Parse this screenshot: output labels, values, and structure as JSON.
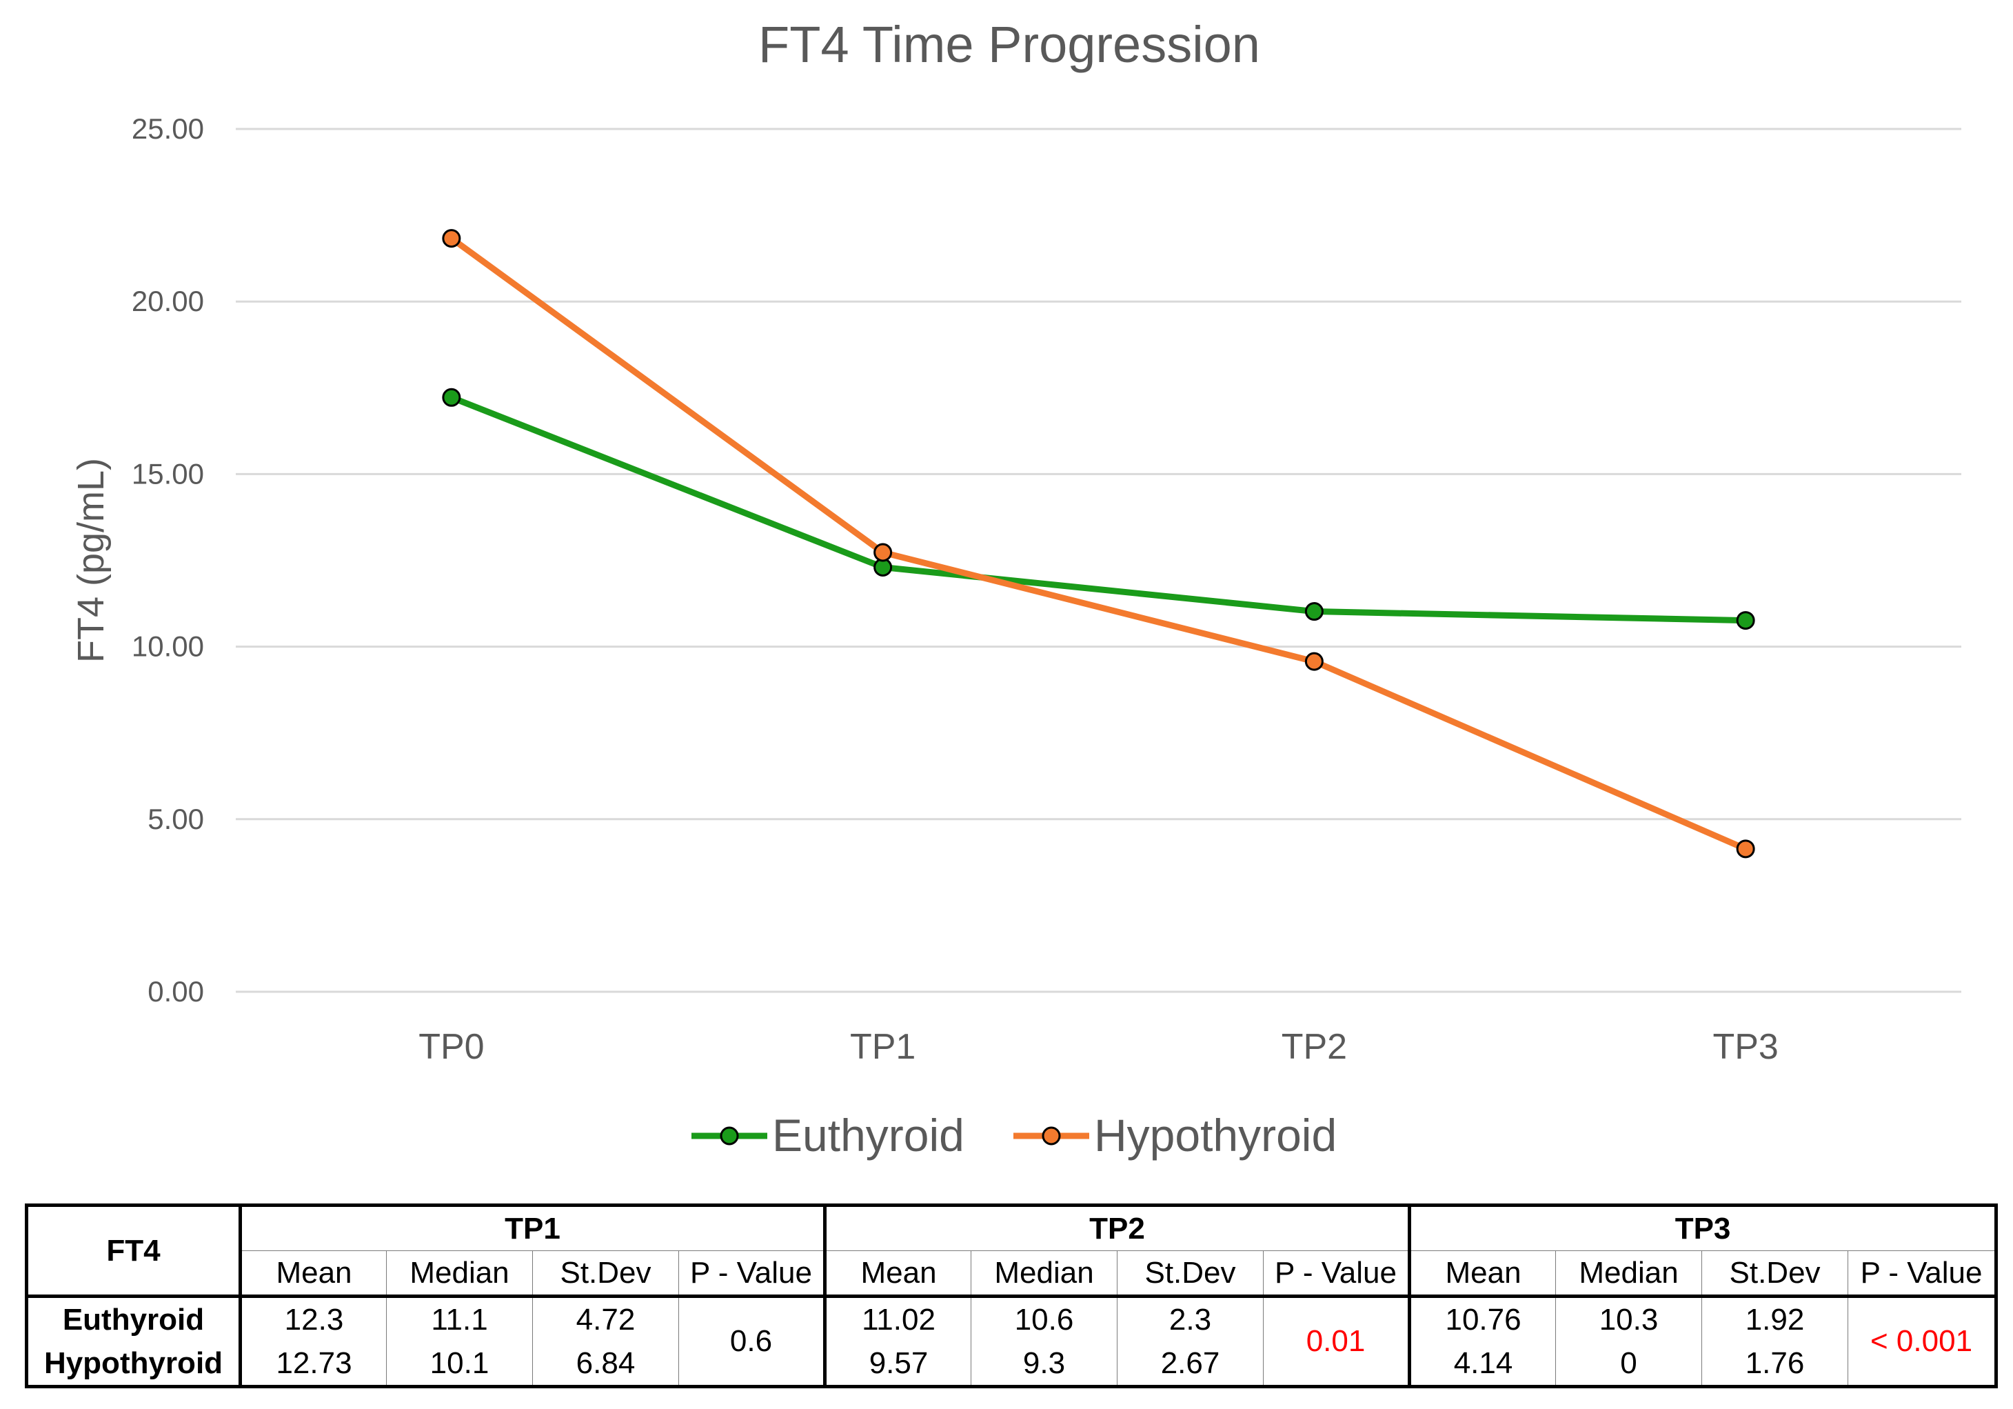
{
  "colors": {
    "euthyroid": "#1a9b1a",
    "hypothyroid": "#f37a2e",
    "significant": "#ff0000",
    "grid": "#d9d9d9",
    "text": "#595959"
  },
  "chart_data": {
    "type": "line",
    "title": "FT4 Time Progression",
    "xlabel": "",
    "ylabel": "FT4 (pg/mL)",
    "categories": [
      "TP0",
      "TP1",
      "TP2",
      "TP3"
    ],
    "ylim": [
      0,
      25
    ],
    "yticks": [
      "0.00",
      "5.00",
      "10.00",
      "15.00",
      "20.00",
      "25.00"
    ],
    "grid": true,
    "legend_position": "bottom",
    "series": [
      {
        "name": "Euthyroid",
        "values": [
          17.22,
          12.3,
          11.02,
          10.76
        ]
      },
      {
        "name": "Hypothyroid",
        "values": [
          21.83,
          12.73,
          9.57,
          4.14
        ]
      }
    ]
  },
  "table": {
    "corner": "FT4",
    "groups": [
      "TP1",
      "TP2",
      "TP3"
    ],
    "subheaders": [
      "Mean",
      "Median",
      "St.Dev",
      "P - Value"
    ],
    "rows": [
      {
        "label": "Euthyroid",
        "values": [
          [
            "12.3",
            "11.1",
            "4.72"
          ],
          [
            "11.02",
            "10.6",
            "2.3"
          ],
          [
            "10.76",
            "10.3",
            "1.92"
          ]
        ]
      },
      {
        "label": "Hypothyroid",
        "values": [
          [
            "12.73",
            "10.1",
            "6.84"
          ],
          [
            "9.57",
            "9.3",
            "2.67"
          ],
          [
            "4.14",
            "0",
            "1.76"
          ]
        ]
      }
    ],
    "pvalues": [
      "0.6",
      "0.01",
      "< 0.001"
    ],
    "pvalue_significant": [
      false,
      true,
      true
    ]
  }
}
